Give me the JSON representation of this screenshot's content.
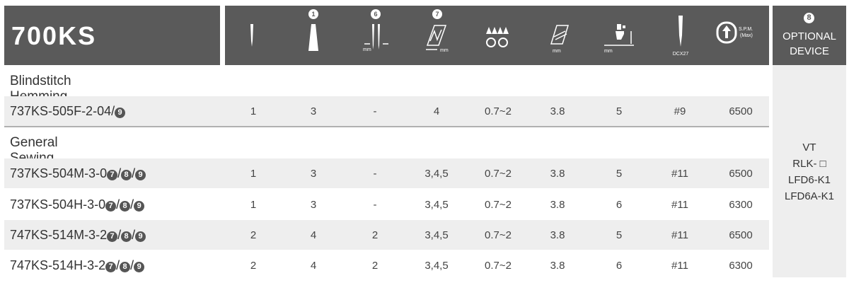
{
  "title": "700KS",
  "optional_device": {
    "num": "8",
    "line1": "OPTIONAL",
    "line2": "DEVICE",
    "items": [
      "VT",
      "RLK- □",
      "LFD6-K1",
      "LFD6A-K1"
    ]
  },
  "icon_labels": {
    "needle_num": "1",
    "spacing_num": "6",
    "spacing_unit": "mm",
    "stitch_num": "7",
    "stitch_unit": "mm",
    "length_unit": "mm",
    "lift_unit": "mm",
    "needle_sys": "DCX27",
    "spm_line1": "S.P.M.",
    "spm_line2": "(Max)"
  },
  "sections": [
    {
      "label": "Blindstitch Hemming"
    },
    {
      "label": "General Sewing"
    }
  ],
  "rows": [
    {
      "model": "737KS-505F-2-04/",
      "badges": [
        "9"
      ],
      "values": [
        "1",
        "3",
        "-",
        "4",
        "0.7~2",
        "3.8",
        "5",
        "#9",
        "6500"
      ]
    },
    {
      "model": "737KS-504M-3-0",
      "badges": [
        "7",
        "8",
        "9"
      ],
      "values": [
        "1",
        "3",
        "-",
        "3,4,5",
        "0.7~2",
        "3.8",
        "5",
        "#11",
        "6500"
      ]
    },
    {
      "model": "737KS-504H-3-0",
      "badges": [
        "7",
        "8",
        "9"
      ],
      "values": [
        "1",
        "3",
        "-",
        "3,4,5",
        "0.7~2",
        "3.8",
        "6",
        "#11",
        "6300"
      ]
    },
    {
      "model": "747KS-514M-3-2",
      "badges": [
        "7",
        "8",
        "9"
      ],
      "values": [
        "2",
        "4",
        "2",
        "3,4,5",
        "0.7~2",
        "3.8",
        "5",
        "#11",
        "6500"
      ]
    },
    {
      "model": "747KS-514H-3-2",
      "badges": [
        "7",
        "8",
        "9"
      ],
      "values": [
        "2",
        "4",
        "2",
        "3,4,5",
        "0.7~2",
        "3.8",
        "6",
        "#11",
        "6300"
      ]
    }
  ],
  "colors": {
    "header_bg": "#5a5a5a",
    "row_shade": "#eeeeee",
    "separator": "#b0b0b0"
  }
}
